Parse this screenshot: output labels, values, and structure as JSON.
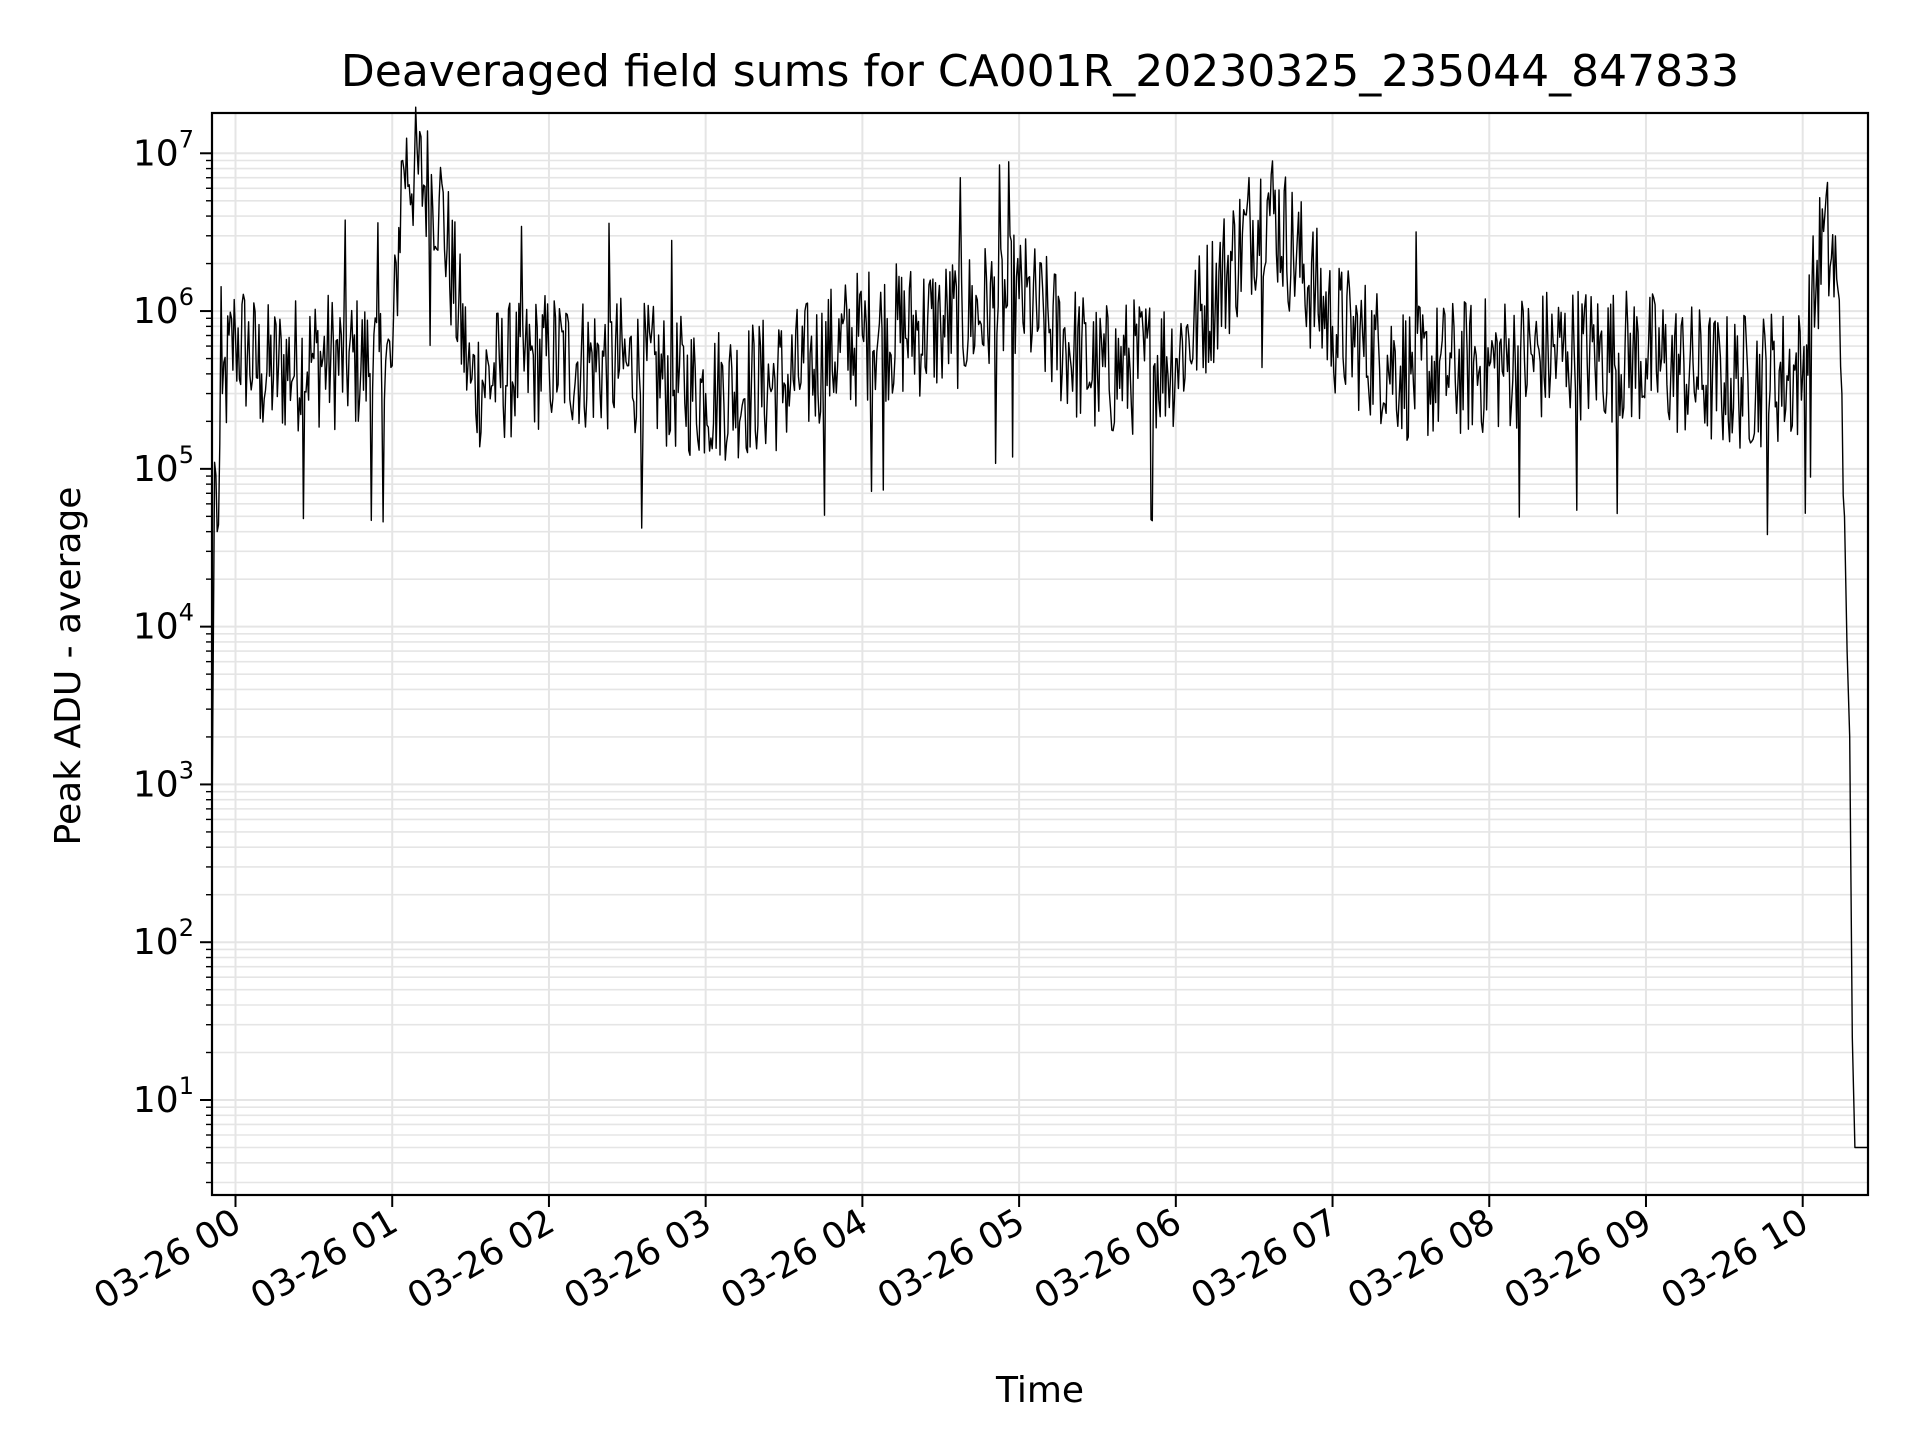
{
  "chart_data": {
    "type": "line",
    "title": "Deaveraged field sums for CA001R_20230325_235044_847833",
    "xlabel": "Time",
    "ylabel": "Peak ADU - average",
    "y_scale": "log",
    "ylim": [
      2.5,
      18000000
    ],
    "xlim": [
      "2023-03-25 23:51",
      "2023-03-26 10:25"
    ],
    "grid": true,
    "line_color": "#000000",
    "grid_color": "#e5e5e5",
    "x_ticks": [
      {
        "label": "03-26 00",
        "t": "2023-03-26 00:00"
      },
      {
        "label": "03-26 01",
        "t": "2023-03-26 01:00"
      },
      {
        "label": "03-26 02",
        "t": "2023-03-26 02:00"
      },
      {
        "label": "03-26 03",
        "t": "2023-03-26 03:00"
      },
      {
        "label": "03-26 04",
        "t": "2023-03-26 04:00"
      },
      {
        "label": "03-26 05",
        "t": "2023-03-26 05:00"
      },
      {
        "label": "03-26 06",
        "t": "2023-03-26 06:00"
      },
      {
        "label": "03-26 07",
        "t": "2023-03-26 07:00"
      },
      {
        "label": "03-26 08",
        "t": "2023-03-26 08:00"
      },
      {
        "label": "03-26 09",
        "t": "2023-03-26 09:00"
      },
      {
        "label": "03-26 10",
        "t": "2023-03-26 10:00"
      }
    ],
    "y_ticks": [
      {
        "base": "10",
        "exp": "1",
        "value": 10
      },
      {
        "base": "10",
        "exp": "2",
        "value": 100
      },
      {
        "base": "10",
        "exp": "3",
        "value": 1000
      },
      {
        "base": "10",
        "exp": "4",
        "value": 10000
      },
      {
        "base": "10",
        "exp": "5",
        "value": 100000
      },
      {
        "base": "10",
        "exp": "6",
        "value": 1000000
      },
      {
        "base": "10",
        "exp": "7",
        "value": 10000000
      }
    ],
    "series": [
      {
        "points": [
          {
            "t": "2023-03-25 23:51",
            "y": 500
          },
          {
            "t": "2023-03-25 23:52",
            "y": 110000
          },
          {
            "t": "2023-03-25 23:53",
            "y": 40000
          },
          {
            "t": "2023-03-25 23:55",
            "y": 300000
          },
          {
            "t": "2023-03-26 00:00",
            "y": 700000
          },
          {
            "t": "2023-03-26 00:10",
            "y": 400000
          },
          {
            "t": "2023-03-26 00:30",
            "y": 500000
          },
          {
            "t": "2023-03-26 01:00",
            "y": 450000
          },
          {
            "t": "2023-03-26 01:04",
            "y": 9000000
          },
          {
            "t": "2023-03-26 01:18",
            "y": 5200000
          },
          {
            "t": "2023-03-26 01:30",
            "y": 350000
          },
          {
            "t": "2023-03-26 02:00",
            "y": 500000
          },
          {
            "t": "2023-03-26 02:30",
            "y": 450000
          },
          {
            "t": "2023-03-26 03:00",
            "y": 300000
          },
          {
            "t": "2023-03-26 03:30",
            "y": 350000
          },
          {
            "t": "2023-03-26 04:00",
            "y": 700000
          },
          {
            "t": "2023-03-26 04:30",
            "y": 800000
          },
          {
            "t": "2023-03-26 05:00",
            "y": 1200000
          },
          {
            "t": "2023-03-26 05:30",
            "y": 400000
          },
          {
            "t": "2023-03-26 06:00",
            "y": 500000
          },
          {
            "t": "2023-03-26 06:35",
            "y": 5000000
          },
          {
            "t": "2023-03-26 07:00",
            "y": 800000
          },
          {
            "t": "2023-03-26 07:30",
            "y": 400000
          },
          {
            "t": "2023-03-26 08:00",
            "y": 450000
          },
          {
            "t": "2023-03-26 08:30",
            "y": 550000
          },
          {
            "t": "2023-03-26 09:00",
            "y": 500000
          },
          {
            "t": "2023-03-26 09:30",
            "y": 350000
          },
          {
            "t": "2023-03-26 10:00",
            "y": 400000
          },
          {
            "t": "2023-03-26 10:08",
            "y": 3200000
          },
          {
            "t": "2023-03-26 10:13",
            "y": 1600000
          },
          {
            "t": "2023-03-26 10:15",
            "y": 300000
          },
          {
            "t": "2023-03-26 10:16",
            "y": 50000
          },
          {
            "t": "2023-03-26 10:17",
            "y": 7000
          },
          {
            "t": "2023-03-26 10:18",
            "y": 2000
          },
          {
            "t": "2023-03-26 10:19",
            "y": 25
          },
          {
            "t": "2023-03-26 10:20",
            "y": 5
          },
          {
            "t": "2023-03-26 10:25",
            "y": 5
          }
        ]
      }
    ]
  }
}
